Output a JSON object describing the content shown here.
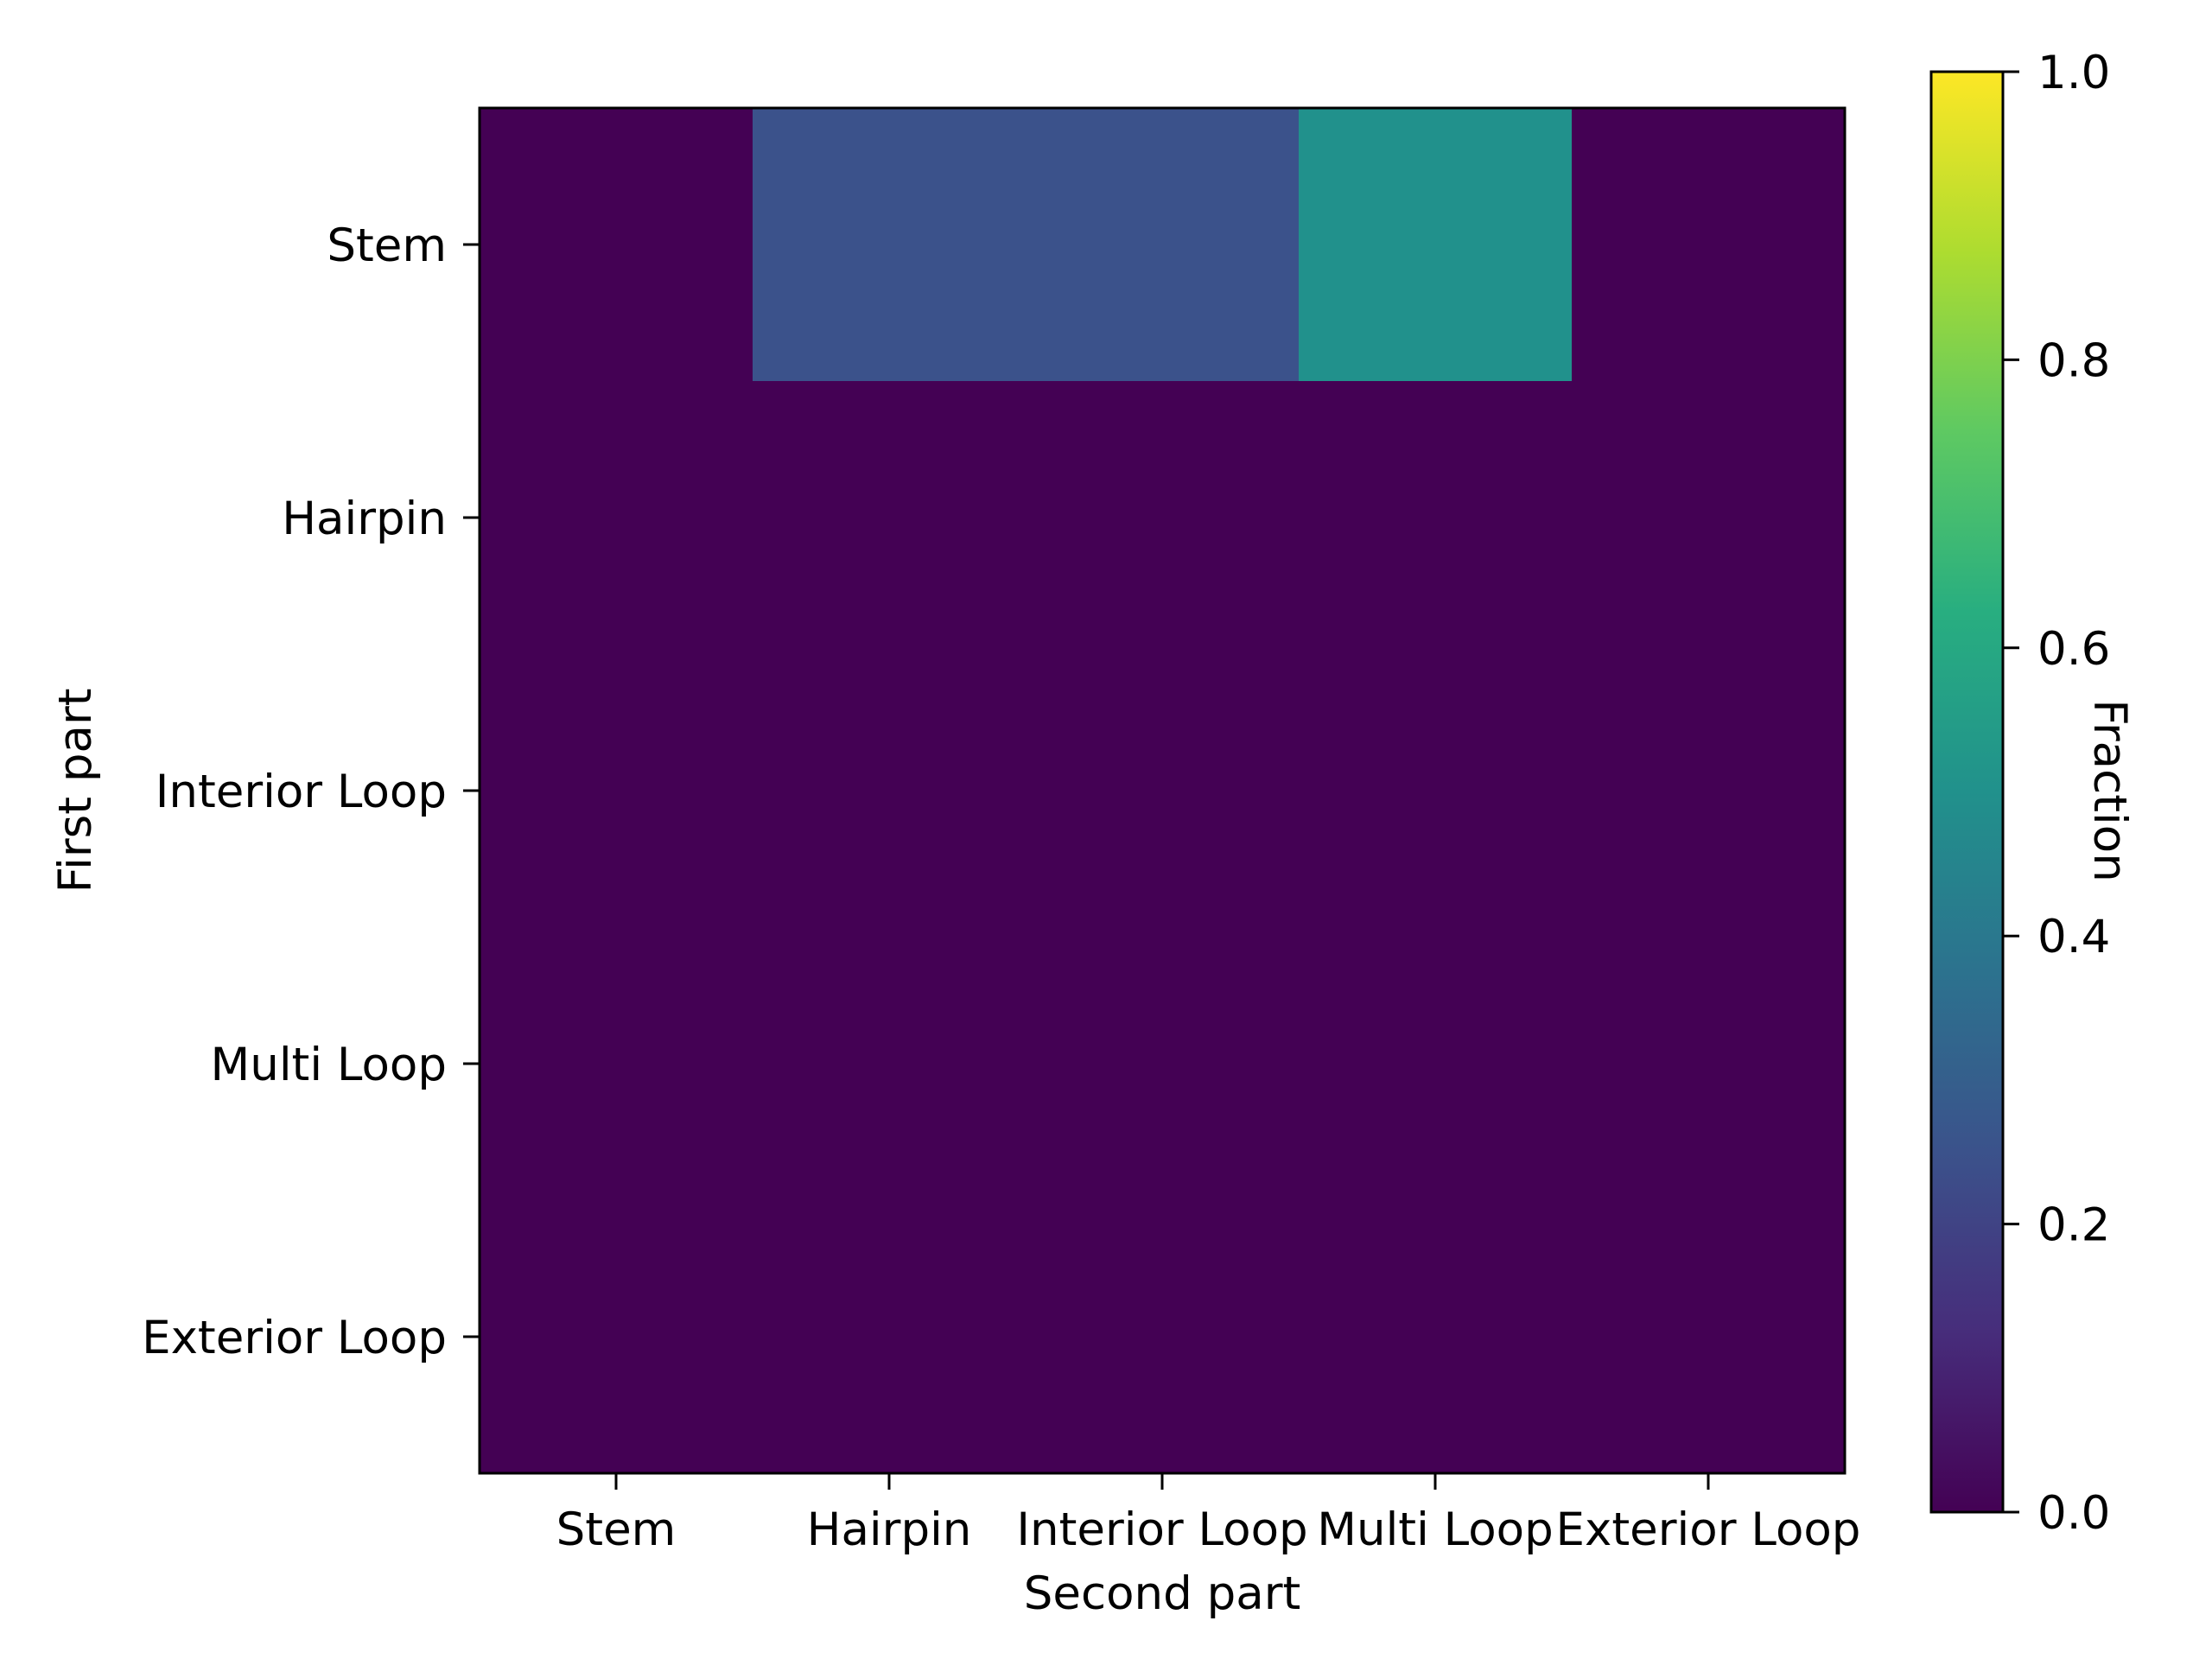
{
  "chart_data": {
    "type": "heatmap",
    "xlabel": "Second part",
    "ylabel": "First part",
    "x_categories": [
      "Stem",
      "Hairpin",
      "Interior Loop",
      "Multi Loop",
      "Exterior Loop"
    ],
    "y_categories": [
      "Stem",
      "Hairpin",
      "Interior Loop",
      "Multi Loop",
      "Exterior Loop"
    ],
    "values": [
      [
        0.0,
        0.25,
        0.25,
        0.5,
        0.0
      ],
      [
        0.0,
        0.0,
        0.0,
        0.0,
        0.0
      ],
      [
        0.0,
        0.0,
        0.0,
        0.0,
        0.0
      ],
      [
        0.0,
        0.0,
        0.0,
        0.0,
        0.0
      ],
      [
        0.0,
        0.0,
        0.0,
        0.0,
        0.0
      ]
    ],
    "colormap": "viridis",
    "colorbar": {
      "label": "Fraction",
      "range": [
        0.0,
        1.0
      ],
      "ticks": [
        "0.0",
        "0.2",
        "0.4",
        "0.6",
        "0.8",
        "1.0"
      ]
    },
    "colors": {
      "viridis_0.00": "#440154",
      "viridis_0.25": "#3b528b",
      "viridis_0.50": "#21918c",
      "viridis_0.75": "#5ec962",
      "viridis_1.00": "#fde725"
    }
  }
}
